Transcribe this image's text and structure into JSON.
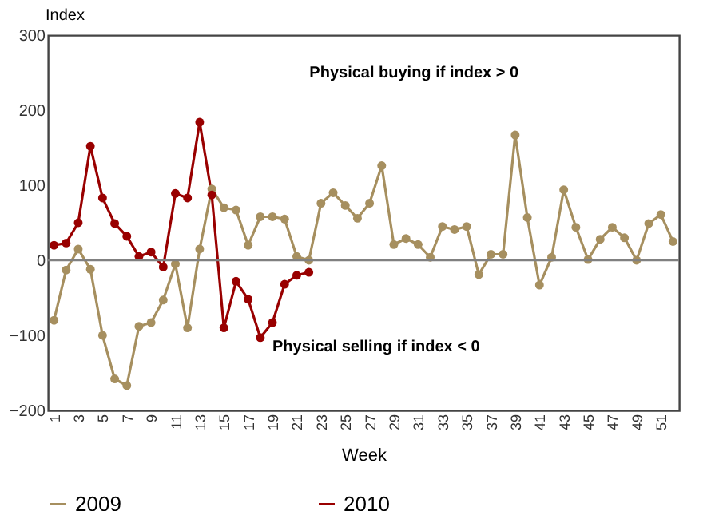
{
  "chart_data": {
    "type": "line",
    "ylabel": "Index",
    "xlabel": "Week",
    "categories": [
      "1",
      null,
      "3",
      null,
      "5",
      null,
      "7",
      null,
      "9",
      null,
      "11",
      null,
      "13",
      null,
      "15",
      null,
      "17",
      null,
      "19",
      null,
      "21",
      null,
      "23",
      null,
      "25",
      null,
      "27",
      null,
      "29",
      null,
      "31",
      null,
      "33",
      null,
      "35",
      null,
      "37",
      null,
      "39",
      null,
      "41",
      null,
      "43",
      null,
      "45",
      null,
      "47",
      null,
      "49",
      null,
      "51",
      null
    ],
    "series": [
      {
        "name": "2009",
        "color": "#a68f5f",
        "values": [
          -80,
          -13,
          15,
          -12,
          -100,
          -158,
          -167,
          -88,
          -83,
          -53,
          -5,
          -90,
          15,
          95,
          70,
          67,
          20,
          58,
          58,
          55,
          5,
          0,
          76,
          90,
          73,
          56,
          76,
          126,
          21,
          29,
          21,
          4,
          45,
          41,
          45,
          -19,
          8,
          8,
          167,
          57,
          -33,
          4,
          94,
          44,
          1,
          28,
          44,
          30,
          0,
          49,
          61,
          25
        ]
      },
      {
        "name": "2010",
        "color": "#990000",
        "values": [
          20,
          23,
          50,
          152,
          83,
          49,
          32,
          5,
          11,
          -9,
          89,
          83,
          184,
          87,
          -90,
          -28,
          -52,
          -103,
          -83,
          -32,
          -20,
          -16,
          null,
          null,
          null,
          null,
          null,
          null,
          null,
          null,
          null,
          null,
          null,
          null,
          null,
          null,
          null,
          null,
          null,
          null,
          null,
          null,
          null,
          null,
          null,
          null,
          null,
          null,
          null,
          null,
          null,
          null
        ]
      }
    ],
    "ylim": [
      -200,
      300
    ],
    "yticks": [
      -200,
      -100,
      0,
      100,
      200,
      300
    ],
    "ref_lines": [
      {
        "axis": "y",
        "value": 0,
        "color": "#808080"
      }
    ],
    "annotations": [
      "Physical buying if index > 0",
      "Physical selling if index < 0"
    ],
    "grid": false,
    "legend": "bottom",
    "marker": "circle",
    "line_style": "solid"
  }
}
